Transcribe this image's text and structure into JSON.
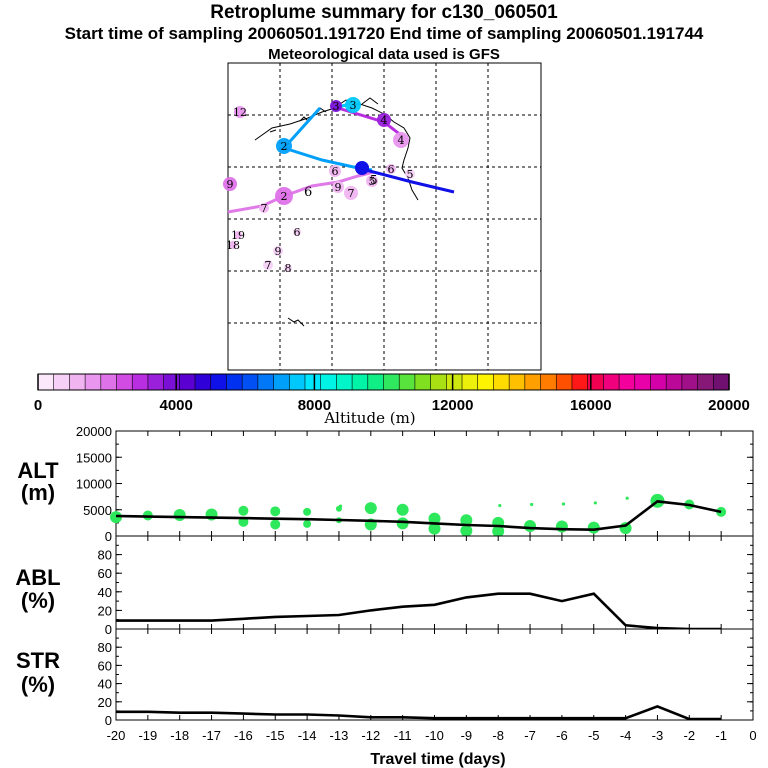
{
  "title": "Retroplume summary for c130_060501",
  "subtitle": "Start time of sampling 20060501.191720     End time of sampling 20060501.191744",
  "subtitle2": "Meteorological data used is GFS",
  "colorbar": {
    "label": "Altitude (m)",
    "ticks": [
      "0",
      "4000",
      "8000",
      "12000",
      "16000",
      "20000"
    ],
    "colors": [
      "#fbe8fb",
      "#f6d0f6",
      "#f0b4f0",
      "#e896ee",
      "#de72e8",
      "#d04ce2",
      "#b82ee0",
      "#9a20dc",
      "#7a10d6",
      "#5a00d0",
      "#3000d8",
      "#1010e8",
      "#0030f0",
      "#0050f4",
      "#0078f8",
      "#00a0fa",
      "#00c8fc",
      "#00e6fc",
      "#00f4e6",
      "#00f6c8",
      "#00f4a8",
      "#10ee86",
      "#30e860",
      "#58e43c",
      "#80e020",
      "#a8e014",
      "#cce80e",
      "#ecf00a",
      "#fff400",
      "#ffdc00",
      "#ffc000",
      "#ffa000",
      "#ff7c00",
      "#ff5000",
      "#ff1818",
      "#f00050",
      "#f0007c",
      "#f4009c",
      "#e800a8",
      "#d400a8",
      "#bc0898",
      "#a01088",
      "#881878",
      "#701070"
    ]
  },
  "map": {
    "trajectory_labels": [
      {
        "t": "12",
        "c": "#e896ee"
      },
      {
        "t": "3",
        "c": "#7a10d6"
      },
      {
        "t": "3",
        "c": "#00c8fc"
      },
      {
        "t": "4",
        "c": "#9a20dc"
      },
      {
        "t": "4",
        "c": "#e896ee"
      },
      {
        "t": "2",
        "c": "#00a0fa"
      },
      {
        "t": "6",
        "c": "#f0b4f0"
      },
      {
        "t": "6",
        "c": "#f0b4f0"
      },
      {
        "t": "5",
        "c": "#f0b4f0"
      },
      {
        "t": "7",
        "c": "#f0b4f0"
      },
      {
        "t": "9",
        "c": "#f0b4f0"
      },
      {
        "t": "2",
        "c": "#de72e8"
      },
      {
        "t": "7",
        "c": "#f0b4f0"
      },
      {
        "t": "19",
        "c": "#f0b4f0"
      },
      {
        "t": "18",
        "c": "#f0b4f0"
      },
      {
        "t": "6",
        "c": "#f6d0f6"
      },
      {
        "t": "9",
        "c": "#f6d0f6"
      },
      {
        "t": "7",
        "c": "#f6d0f6"
      },
      {
        "t": "8",
        "c": "#f6d0f6"
      },
      {
        "t": "5",
        "c": "#f6d0f6"
      },
      {
        "t": "9",
        "c": "#de72e8"
      }
    ]
  },
  "panels": {
    "alt": {
      "label1": "ALT",
      "label2": "(m)"
    },
    "abl": {
      "label1": "ABL",
      "label2": "(%)"
    },
    "str": {
      "label1": "STR",
      "label2": "(%)"
    }
  },
  "chart_data": [
    {
      "type": "line",
      "name": "ALT",
      "title": "Retroplume summary for c130_060501",
      "xlabel": "Travel time (days)",
      "ylabel": "ALT (m)",
      "xlim": [
        -20,
        0
      ],
      "ylim": [
        0,
        20000
      ],
      "yticks": [
        "0",
        "5000",
        "10000",
        "15000",
        "20000"
      ],
      "x": [
        -20,
        -19,
        -18,
        -17,
        -16,
        -15,
        -14,
        -13,
        -12,
        -11,
        -10,
        -9,
        -8,
        -7,
        -6,
        -5,
        -4,
        -3,
        -2,
        -1
      ],
      "values": [
        3800,
        3700,
        3600,
        3500,
        3400,
        3300,
        3200,
        3050,
        2900,
        2700,
        2400,
        2100,
        1900,
        1500,
        1300,
        1200,
        2000,
        6600,
        5900,
        4600
      ],
      "scatter_points": [
        {
          "x": -20,
          "y": 3600
        },
        {
          "x": -19,
          "y": 3900
        },
        {
          "x": -18,
          "y": 4000
        },
        {
          "x": -17,
          "y": 4100
        },
        {
          "x": -16,
          "y": 4800
        },
        {
          "x": -16,
          "y": 2700
        },
        {
          "x": -15,
          "y": 4700
        },
        {
          "x": -15,
          "y": 2200
        },
        {
          "x": -14,
          "y": 4600
        },
        {
          "x": -14,
          "y": 2300
        },
        {
          "x": -13,
          "y": 5200
        },
        {
          "x": -13,
          "y": 3000
        },
        {
          "x": -12,
          "y": 5300
        },
        {
          "x": -12,
          "y": 2200
        },
        {
          "x": -11,
          "y": 5000
        },
        {
          "x": -11,
          "y": 2400
        },
        {
          "x": -10,
          "y": 3300
        },
        {
          "x": -10,
          "y": 1400
        },
        {
          "x": -9,
          "y": 3000
        },
        {
          "x": -9,
          "y": 1000
        },
        {
          "x": -8,
          "y": 2500
        },
        {
          "x": -8,
          "y": 900
        },
        {
          "x": -7,
          "y": 1900
        },
        {
          "x": -6,
          "y": 1800
        },
        {
          "x": -5,
          "y": 1600
        },
        {
          "x": -4,
          "y": 1500
        },
        {
          "x": -3,
          "y": 6700
        },
        {
          "x": -2,
          "y": 6000
        },
        {
          "x": -1,
          "y": 4600
        }
      ],
      "scatter_color": "#2ee85c",
      "line_color": "#000000"
    },
    {
      "type": "line",
      "name": "ABL",
      "ylabel": "ABL (%)",
      "xlim": [
        -20,
        0
      ],
      "ylim": [
        0,
        100
      ],
      "yticks": [
        "0",
        "20",
        "40",
        "60",
        "80"
      ],
      "x": [
        -20,
        -19,
        -18,
        -17,
        -16,
        -15,
        -14,
        -13,
        -12,
        -11,
        -10,
        -9,
        -8,
        -7,
        -6,
        -5,
        -4,
        -3,
        -2,
        -1
      ],
      "values": [
        9,
        9,
        9,
        9,
        11,
        13,
        14,
        15,
        20,
        24,
        26,
        34,
        38,
        38,
        30,
        38,
        4,
        1,
        0,
        0
      ],
      "line_color": "#000000"
    },
    {
      "type": "line",
      "name": "STR",
      "ylabel": "STR (%)",
      "xlim": [
        -20,
        0
      ],
      "ylim": [
        0,
        100
      ],
      "yticks": [
        "0",
        "20",
        "40",
        "60",
        "80"
      ],
      "xticks": [
        "-20",
        "-19",
        "-18",
        "-17",
        "-16",
        "-15",
        "-14",
        "-13",
        "-12",
        "-11",
        "-10",
        "-9",
        "-8",
        "-7",
        "-6",
        "-5",
        "-4",
        "-3",
        "-2",
        "-1",
        "0"
      ],
      "x": [
        -20,
        -19,
        -18,
        -17,
        -16,
        -15,
        -14,
        -13,
        -12,
        -11,
        -10,
        -9,
        -8,
        -7,
        -6,
        -5,
        -4,
        -3,
        -2,
        -1
      ],
      "values": [
        9,
        9,
        8,
        8,
        7,
        6,
        6,
        5,
        3,
        3,
        2,
        2,
        2,
        2,
        2,
        2,
        2,
        15,
        1,
        1
      ],
      "line_color": "#000000"
    }
  ]
}
